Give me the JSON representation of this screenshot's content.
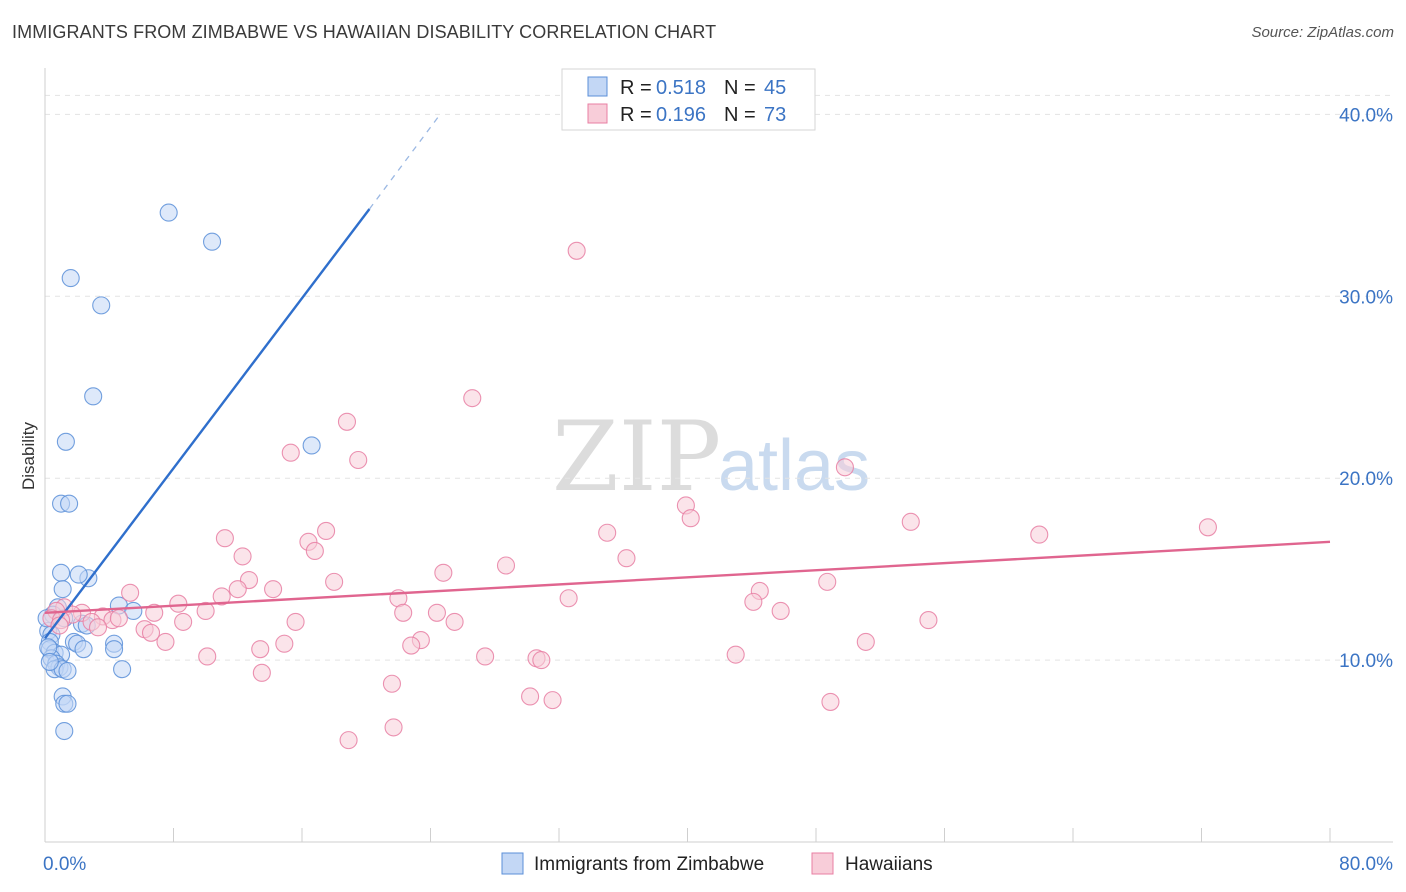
{
  "title": "IMMIGRANTS FROM ZIMBABWE VS HAWAIIAN DISABILITY CORRELATION CHART",
  "source": "Source: ZipAtlas.com",
  "watermark": {
    "zip": "ZIP",
    "atlas": "atlas"
  },
  "legend": {
    "r_label": "R =",
    "n_label": "N =",
    "items": [
      {
        "r": "0.518",
        "n": "45",
        "color": "#5b8fd8",
        "fill": "#c3d7f5"
      },
      {
        "r": "0.196",
        "n": "73",
        "color": "#e87fa3",
        "fill": "#f8cdd9"
      }
    ]
  },
  "chart_data": {
    "type": "scatter",
    "xlabel": "",
    "ylabel": "Disability",
    "xlim": [
      0,
      80
    ],
    "ylim": [
      0,
      42
    ],
    "x_tick_labels": [
      "0.0%",
      "80.0%"
    ],
    "y_ticks": [
      10,
      20,
      30,
      40
    ],
    "y_tick_labels": [
      "10.0%",
      "20.0%",
      "30.0%",
      "40.0%"
    ],
    "grid": true,
    "legend_position": "bottom",
    "series": [
      {
        "name": "Immigrants from Zimbabwe",
        "color": "#5b8fd8",
        "fill": "#c3d7f5",
        "trend": {
          "x0": 0,
          "y0": 11.2,
          "x1": 20.2,
          "y1": 34.8,
          "dash_x1": 24.6,
          "dash_y1": 40.0
        },
        "points": [
          [
            7.7,
            34.6
          ],
          [
            10.4,
            33.0
          ],
          [
            1.6,
            31.0
          ],
          [
            3.5,
            29.5
          ],
          [
            3.0,
            24.5
          ],
          [
            1.3,
            22.0
          ],
          [
            16.6,
            21.8
          ],
          [
            1.0,
            18.6
          ],
          [
            1.5,
            18.6
          ],
          [
            1.0,
            14.8
          ],
          [
            2.7,
            14.5
          ],
          [
            2.1,
            14.7
          ],
          [
            1.1,
            13.9
          ],
          [
            4.6,
            13.0
          ],
          [
            5.5,
            12.7
          ],
          [
            0.8,
            12.9
          ],
          [
            0.5,
            12.5
          ],
          [
            1.2,
            12.3
          ],
          [
            2.3,
            12.0
          ],
          [
            2.6,
            11.9
          ],
          [
            0.2,
            11.6
          ],
          [
            0.4,
            11.4
          ],
          [
            0.3,
            11.0
          ],
          [
            1.8,
            11.0
          ],
          [
            2.0,
            10.9
          ],
          [
            4.3,
            10.9
          ],
          [
            0.3,
            10.6
          ],
          [
            0.6,
            10.4
          ],
          [
            1.0,
            10.3
          ],
          [
            2.4,
            10.6
          ],
          [
            4.3,
            10.6
          ],
          [
            0.4,
            10.1
          ],
          [
            0.7,
            9.8
          ],
          [
            0.9,
            9.6
          ],
          [
            0.6,
            9.5
          ],
          [
            1.1,
            9.5
          ],
          [
            1.4,
            9.4
          ],
          [
            4.8,
            9.5
          ],
          [
            1.1,
            8.0
          ],
          [
            1.2,
            7.6
          ],
          [
            1.4,
            7.6
          ],
          [
            1.2,
            6.1
          ],
          [
            0.1,
            12.3
          ],
          [
            0.2,
            10.7
          ],
          [
            0.3,
            9.9
          ]
        ]
      },
      {
        "name": "Hawaiians",
        "color": "#e87fa3",
        "fill": "#f8cdd9",
        "trend": {
          "x0": 0,
          "y0": 12.6,
          "x1": 80,
          "y1": 16.5
        },
        "points": [
          [
            33.1,
            32.5
          ],
          [
            26.6,
            24.4
          ],
          [
            18.8,
            23.1
          ],
          [
            15.3,
            21.4
          ],
          [
            19.5,
            21.0
          ],
          [
            49.8,
            20.6
          ],
          [
            39.9,
            18.5
          ],
          [
            40.2,
            17.8
          ],
          [
            53.9,
            17.6
          ],
          [
            72.4,
            17.3
          ],
          [
            35.0,
            17.0
          ],
          [
            61.9,
            16.9
          ],
          [
            17.5,
            17.1
          ],
          [
            11.2,
            16.7
          ],
          [
            16.4,
            16.5
          ],
          [
            16.8,
            16.0
          ],
          [
            12.3,
            15.7
          ],
          [
            36.2,
            15.6
          ],
          [
            28.7,
            15.2
          ],
          [
            24.8,
            14.8
          ],
          [
            12.7,
            14.4
          ],
          [
            18.0,
            14.3
          ],
          [
            48.7,
            14.3
          ],
          [
            14.2,
            13.9
          ],
          [
            12.0,
            13.9
          ],
          [
            44.5,
            13.8
          ],
          [
            5.3,
            13.7
          ],
          [
            11.0,
            13.5
          ],
          [
            22.0,
            13.4
          ],
          [
            32.6,
            13.4
          ],
          [
            44.1,
            13.2
          ],
          [
            8.3,
            13.1
          ],
          [
            1.2,
            12.9
          ],
          [
            0.7,
            12.7
          ],
          [
            10.0,
            12.7
          ],
          [
            6.8,
            12.6
          ],
          [
            22.3,
            12.6
          ],
          [
            24.4,
            12.6
          ],
          [
            45.8,
            12.7
          ],
          [
            2.3,
            12.6
          ],
          [
            3.6,
            12.4
          ],
          [
            4.2,
            12.2
          ],
          [
            1.7,
            12.5
          ],
          [
            0.4,
            12.3
          ],
          [
            1.0,
            12.2
          ],
          [
            2.9,
            12.1
          ],
          [
            4.6,
            12.3
          ],
          [
            8.6,
            12.1
          ],
          [
            15.6,
            12.1
          ],
          [
            25.5,
            12.1
          ],
          [
            55.0,
            12.2
          ],
          [
            3.3,
            11.8
          ],
          [
            6.2,
            11.7
          ],
          [
            6.6,
            11.5
          ],
          [
            23.4,
            11.1
          ],
          [
            51.1,
            11.0
          ],
          [
            7.5,
            11.0
          ],
          [
            14.9,
            10.9
          ],
          [
            22.8,
            10.8
          ],
          [
            13.4,
            10.6
          ],
          [
            43.0,
            10.3
          ],
          [
            10.1,
            10.2
          ],
          [
            27.4,
            10.2
          ],
          [
            30.6,
            10.1
          ],
          [
            30.9,
            10.0
          ],
          [
            13.5,
            9.3
          ],
          [
            21.6,
            8.7
          ],
          [
            30.2,
            8.0
          ],
          [
            31.6,
            7.8
          ],
          [
            48.9,
            7.7
          ],
          [
            21.7,
            6.3
          ],
          [
            18.9,
            5.6
          ],
          [
            0.9,
            11.9
          ]
        ]
      }
    ]
  }
}
